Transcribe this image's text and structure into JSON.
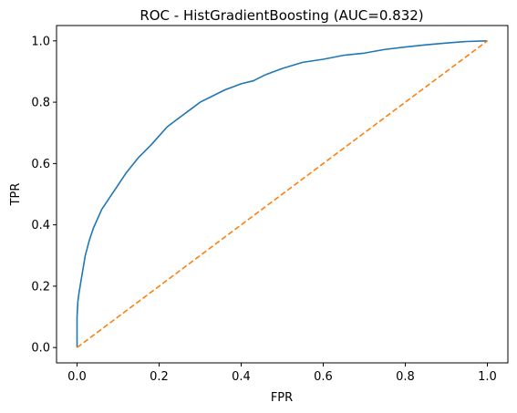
{
  "chart_data": {
    "type": "line",
    "title": "ROC - HistGradientBoosting (AUC=0.832)",
    "xlabel": "FPR",
    "ylabel": "TPR",
    "xlim": [
      -0.05,
      1.05
    ],
    "ylim": [
      -0.05,
      1.05
    ],
    "xticks": [
      0.0,
      0.2,
      0.4,
      0.6,
      0.8,
      1.0
    ],
    "yticks": [
      0.0,
      0.2,
      0.4,
      0.6,
      0.8,
      1.0
    ],
    "xtick_labels": [
      "0.0",
      "0.2",
      "0.4",
      "0.6",
      "0.8",
      "1.0"
    ],
    "ytick_labels": [
      "0.0",
      "0.2",
      "0.4",
      "0.6",
      "0.8",
      "1.0"
    ],
    "grid": false,
    "legend": "none",
    "series": [
      {
        "color": "#1f77b4",
        "style": "solid",
        "x": [
          0.0,
          0.0,
          0.002,
          0.005,
          0.01,
          0.015,
          0.02,
          0.03,
          0.04,
          0.05,
          0.06,
          0.08,
          0.1,
          0.12,
          0.15,
          0.18,
          0.2,
          0.22,
          0.25,
          0.28,
          0.3,
          0.33,
          0.36,
          0.4,
          0.43,
          0.46,
          0.5,
          0.55,
          0.6,
          0.65,
          0.7,
          0.75,
          0.8,
          0.85,
          0.9,
          0.95,
          1.0
        ],
        "y": [
          0.0,
          0.1,
          0.15,
          0.18,
          0.22,
          0.26,
          0.3,
          0.35,
          0.39,
          0.42,
          0.45,
          0.49,
          0.53,
          0.57,
          0.62,
          0.66,
          0.69,
          0.72,
          0.75,
          0.78,
          0.8,
          0.82,
          0.84,
          0.86,
          0.87,
          0.89,
          0.91,
          0.93,
          0.94,
          0.953,
          0.96,
          0.972,
          0.98,
          0.987,
          0.993,
          0.998,
          1.0
        ]
      },
      {
        "color": "#ff7f0e",
        "style": "dashed",
        "x": [
          0.0,
          1.0
        ],
        "y": [
          0.0,
          1.0
        ]
      }
    ]
  }
}
